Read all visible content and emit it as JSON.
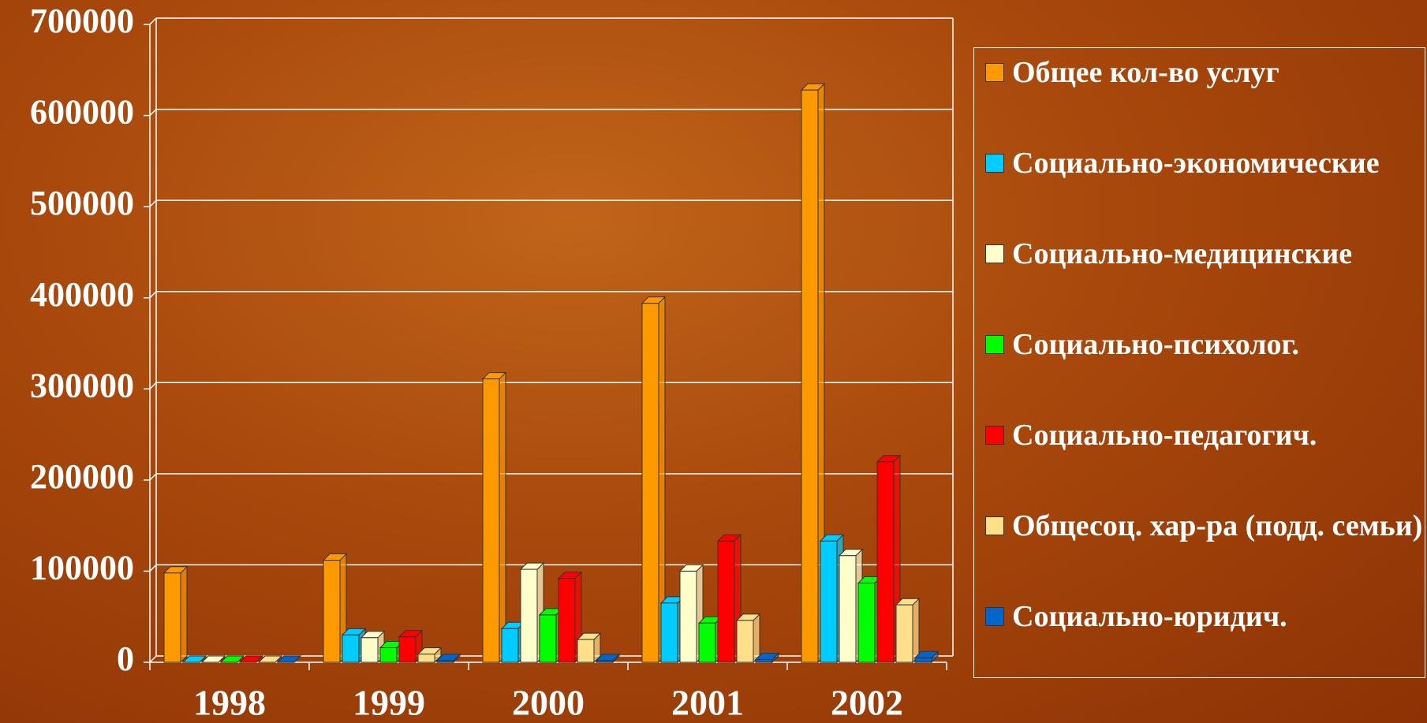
{
  "chart_data": {
    "type": "bar",
    "categories": [
      "1998",
      "1999",
      "2000",
      "2001",
      "2002"
    ],
    "series": [
      {
        "name": "Общее кол-во услуг",
        "color": "#ff9900",
        "values": [
          98000,
          112000,
          311000,
          394000,
          628000
        ]
      },
      {
        "name": "Социально-экономические",
        "color": "#00ccff",
        "values": [
          0,
          30000,
          37000,
          65000,
          133000
        ]
      },
      {
        "name": "Социально-медицинские",
        "color": "#ffffcc",
        "values": [
          0,
          27000,
          102000,
          100000,
          117000
        ]
      },
      {
        "name": "Социально-психолог.",
        "color": "#00ff00",
        "values": [
          0,
          16000,
          52000,
          43000,
          87000
        ]
      },
      {
        "name": "Социально-педагогич.",
        "color": "#ff0000",
        "values": [
          0,
          28000,
          92000,
          133000,
          220000
        ]
      },
      {
        "name": "Общесоц. хар-ра (подд. семьи)",
        "color": "#ffe08a",
        "values": [
          0,
          9000,
          25000,
          46000,
          63000
        ]
      },
      {
        "name": "Социально-юридич.",
        "color": "#0066cc",
        "values": [
          0,
          2000,
          2000,
          3000,
          5000
        ]
      }
    ],
    "ylim": [
      0,
      700000
    ],
    "yticks": [
      0,
      100000,
      200000,
      300000,
      400000,
      500000,
      600000,
      700000
    ],
    "grid": true
  }
}
